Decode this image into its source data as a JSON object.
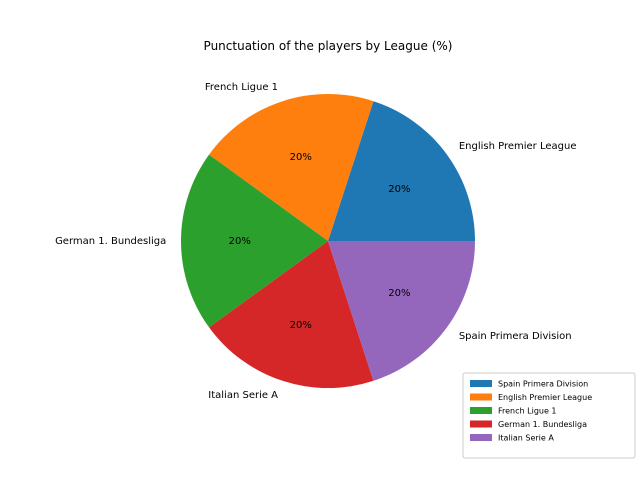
{
  "chart_data": {
    "type": "pie",
    "title": "Punctuation of the players by League (%)",
    "slices": [
      {
        "label": "English Premier League",
        "value": 20,
        "pct_label": "20%",
        "color": "#1f77b4"
      },
      {
        "label": "French Ligue 1",
        "value": 20,
        "pct_label": "20%",
        "color": "#ff7f0e"
      },
      {
        "label": "German 1. Bundesliga",
        "value": 20,
        "pct_label": "20%",
        "color": "#2ca02c"
      },
      {
        "label": "Italian Serie A",
        "value": 20,
        "pct_label": "20%",
        "color": "#d62728"
      },
      {
        "label": "Spain Primera Division",
        "value": 20,
        "pct_label": "20%",
        "color": "#9467bd"
      }
    ],
    "legend": {
      "placement": "lower-right",
      "entries": [
        {
          "label": "Spain Primera Division",
          "color": "#1f77b4"
        },
        {
          "label": "English Premier League",
          "color": "#ff7f0e"
        },
        {
          "label": "French Ligue 1",
          "color": "#2ca02c"
        },
        {
          "label": "German 1. Bundesliga",
          "color": "#d62728"
        },
        {
          "label": "Italian Serie A",
          "color": "#9467bd"
        }
      ]
    }
  }
}
